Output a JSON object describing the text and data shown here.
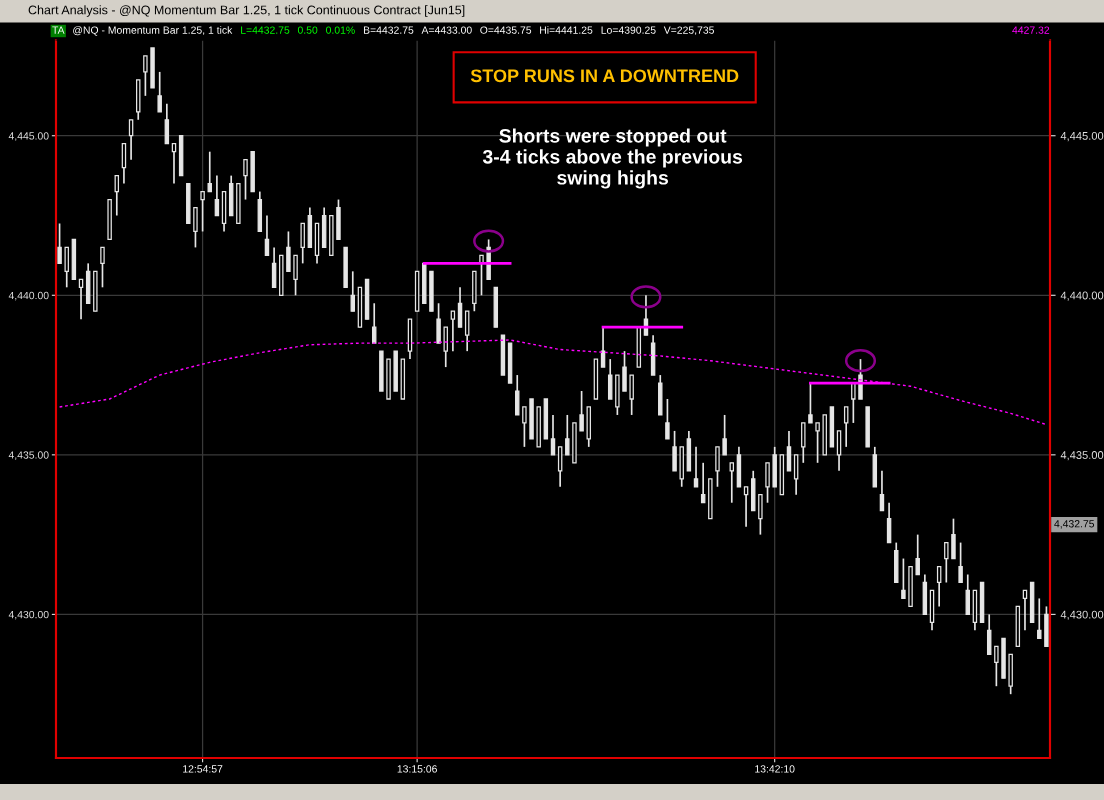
{
  "chart_data": {
    "type": "candlestick",
    "title": "STOP RUNS IN A DOWNTREND",
    "annotations": [
      "Chart Analysis - @NQ Momentum Bar 1.25, 1 tick Continuous Contract [Jun15]",
      "Shorts were stopped out\n3-4 ticks above the previous\nswing highs",
      "TA",
      "@NQ - Momentum Bar 1.25, 1 tick",
      "L=4432.75",
      "0.50",
      "0.01%",
      "B=4432.75",
      "A=4433.00",
      "O=4435.75",
      "Hi=4441.25",
      "Lo=4390.25",
      "V=225,735",
      "4427.32",
      "4,432.75"
    ],
    "categories": [
      null,
      null,
      null,
      null,
      null,
      null,
      null,
      null,
      null,
      null,
      null,
      null,
      null,
      null,
      null,
      null,
      null,
      null,
      null,
      null,
      "12:54:57",
      null,
      null,
      null,
      null,
      null,
      null,
      null,
      null,
      null,
      null,
      null,
      null,
      null,
      null,
      null,
      null,
      null,
      null,
      null,
      null,
      null,
      null,
      null,
      null,
      null,
      null,
      null,
      null,
      null,
      "13:15:06",
      null,
      null,
      null,
      null,
      null,
      null,
      null,
      null,
      null,
      null,
      null,
      null,
      null,
      null,
      null,
      null,
      null,
      null,
      null,
      null,
      null,
      null,
      null,
      null,
      null,
      null,
      null,
      null,
      null,
      null,
      null,
      null,
      null,
      null,
      null,
      null,
      null,
      null,
      null,
      null,
      null,
      null,
      null,
      null,
      null,
      null,
      null,
      null,
      null,
      "13:42:10",
      null,
      null,
      null,
      null,
      null,
      null,
      null,
      null,
      null,
      null,
      null,
      null,
      null,
      null,
      null,
      null,
      null,
      null,
      null,
      null,
      null,
      null,
      null,
      null,
      null,
      null,
      null,
      null,
      null,
      null,
      null,
      null,
      null,
      null,
      null,
      null,
      null,
      null
    ],
    "color": "#e6e6e6",
    "ohlc": [
      [
        4441.5,
        4442.25,
        4441.0,
        4441.0
      ],
      [
        4440.75,
        4441.5,
        4440.25,
        4441.5
      ],
      [
        4441.75,
        4441.75,
        4440.5,
        4440.5
      ],
      [
        4440.25,
        4440.5,
        4439.25,
        4440.5
      ],
      [
        4440.75,
        4441.0,
        4439.75,
        4439.75
      ],
      [
        4439.5,
        4440.75,
        4439.5,
        4440.75
      ],
      [
        4441.0,
        4441.5,
        4440.25,
        4441.5
      ],
      [
        4441.75,
        4443.0,
        4441.75,
        4443.0
      ],
      [
        4443.25,
        4443.75,
        4442.5,
        4443.75
      ],
      [
        4444.0,
        4444.75,
        4443.5,
        4444.75
      ],
      [
        4445.0,
        4445.5,
        4444.25,
        4445.5
      ],
      [
        4445.75,
        4446.75,
        4445.5,
        4446.75
      ],
      [
        4447.0,
        4447.5,
        4446.25,
        4447.5
      ],
      [
        4447.75,
        4447.75,
        4446.5,
        4446.5
      ],
      [
        4446.25,
        4447.0,
        4445.75,
        4445.75
      ],
      [
        4445.5,
        4446.0,
        4444.75,
        4444.75
      ],
      [
        4444.5,
        4444.75,
        4443.5,
        4444.75
      ],
      [
        4445.0,
        4445.0,
        4443.75,
        4443.75
      ],
      [
        4443.5,
        4443.5,
        4442.25,
        4442.25
      ],
      [
        4442.0,
        4442.75,
        4441.5,
        4442.75
      ],
      [
        4443.0,
        4443.25,
        4442.0,
        4443.25
      ],
      [
        4443.5,
        4444.5,
        4443.25,
        4443.25
      ],
      [
        4443.0,
        4443.75,
        4442.5,
        4442.5
      ],
      [
        4442.25,
        4443.25,
        4442.0,
        4443.25
      ],
      [
        4443.5,
        4443.75,
        4442.5,
        4442.5
      ],
      [
        4442.25,
        4443.5,
        4442.25,
        4443.5
      ],
      [
        4443.75,
        4444.25,
        4443.0,
        4444.25
      ],
      [
        4444.5,
        4444.5,
        4443.25,
        4443.25
      ],
      [
        4443.0,
        4443.25,
        4442.0,
        4442.0
      ],
      [
        4441.75,
        4442.5,
        4441.25,
        4441.25
      ],
      [
        4441.0,
        4441.5,
        4440.25,
        4440.25
      ],
      [
        4440.0,
        4441.25,
        4440.0,
        4441.25
      ],
      [
        4441.5,
        4442.0,
        4440.75,
        4440.75
      ],
      [
        4440.5,
        4441.25,
        4440.0,
        4441.25
      ],
      [
        4441.5,
        4442.25,
        4441.0,
        4442.25
      ],
      [
        4442.5,
        4442.75,
        4441.5,
        4441.5
      ],
      [
        4441.25,
        4442.25,
        4441.0,
        4442.25
      ],
      [
        4442.5,
        4442.75,
        4441.5,
        4441.5
      ],
      [
        4441.25,
        4442.5,
        4441.25,
        4442.5
      ],
      [
        4442.75,
        4443.0,
        4441.75,
        4441.75
      ],
      [
        4441.5,
        4441.5,
        4440.25,
        4440.25
      ],
      [
        4440.0,
        4440.75,
        4439.5,
        4439.5
      ],
      [
        4439.0,
        4440.25,
        4439.0,
        4440.25
      ],
      [
        4440.5,
        4440.5,
        4439.25,
        4439.25
      ],
      [
        4439.0,
        4439.75,
        4438.5,
        4438.5
      ],
      [
        4438.25,
        4438.25,
        4437.0,
        4437.0
      ],
      [
        4436.75,
        4438.0,
        4436.75,
        4438.0
      ],
      [
        4438.25,
        4438.25,
        4437.0,
        4437.0
      ],
      [
        4436.75,
        4438.0,
        4436.75,
        4438.0
      ],
      [
        4438.25,
        4439.25,
        4438.0,
        4439.25
      ],
      [
        4439.5,
        4440.75,
        4439.5,
        4440.75
      ],
      [
        4441.0,
        4441.0,
        4439.75,
        4439.75
      ],
      [
        4440.75,
        4440.75,
        4439.5,
        4439.5
      ],
      [
        4439.25,
        4439.75,
        4438.5,
        4438.5
      ],
      [
        4438.25,
        4439.0,
        4437.75,
        4439.0
      ],
      [
        4439.25,
        4439.5,
        4438.25,
        4439.5
      ],
      [
        4439.75,
        4440.25,
        4439.0,
        4439.0
      ],
      [
        4438.75,
        4439.5,
        4438.25,
        4439.5
      ],
      [
        4439.75,
        4440.75,
        4439.5,
        4440.75
      ],
      [
        4441.0,
        4441.25,
        4440.0,
        4441.25
      ],
      [
        4441.5,
        4441.75,
        4440.5,
        4440.5
      ],
      [
        4440.25,
        4440.25,
        4439.0,
        4439.0
      ],
      [
        4438.75,
        4438.75,
        4437.5,
        4437.5
      ],
      [
        4438.5,
        4438.5,
        4437.25,
        4437.25
      ],
      [
        4437.0,
        4437.5,
        4436.25,
        4436.25
      ],
      [
        4436.0,
        4436.5,
        4435.25,
        4436.5
      ],
      [
        4436.75,
        4436.75,
        4435.5,
        4435.5
      ],
      [
        4435.25,
        4436.5,
        4435.25,
        4436.5
      ],
      [
        4436.75,
        4436.75,
        4435.5,
        4435.5
      ],
      [
        4435.5,
        4436.25,
        4435.0,
        4435.0
      ],
      [
        4434.5,
        4435.25,
        4434.0,
        4435.25
      ],
      [
        4435.5,
        4436.25,
        4435.0,
        4435.0
      ],
      [
        4434.75,
        4436.0,
        4434.75,
        4436.0
      ],
      [
        4436.25,
        4437.0,
        4435.75,
        4435.75
      ],
      [
        4435.5,
        4436.5,
        4435.25,
        4436.5
      ],
      [
        4436.75,
        4438.0,
        4436.75,
        4438.0
      ],
      [
        4438.25,
        4439.0,
        4437.75,
        4437.75
      ],
      [
        4437.5,
        4438.0,
        4436.75,
        4436.75
      ],
      [
        4436.5,
        4437.5,
        4436.25,
        4437.5
      ],
      [
        4437.75,
        4438.25,
        4437.0,
        4437.0
      ],
      [
        4436.75,
        4437.5,
        4436.25,
        4437.5
      ],
      [
        4437.75,
        4439.0,
        4437.75,
        4439.0
      ],
      [
        4439.25,
        4440.0,
        4438.75,
        4438.75
      ],
      [
        4438.5,
        4438.75,
        4437.5,
        4437.5
      ],
      [
        4437.25,
        4437.5,
        4436.25,
        4436.25
      ],
      [
        4436.0,
        4436.75,
        4435.5,
        4435.5
      ],
      [
        4435.25,
        4435.75,
        4434.5,
        4434.5
      ],
      [
        4434.25,
        4435.25,
        4434.0,
        4435.25
      ],
      [
        4435.5,
        4435.75,
        4434.5,
        4434.5
      ],
      [
        4434.25,
        4435.25,
        4434.0,
        4434.0
      ],
      [
        4433.75,
        4434.75,
        4433.5,
        4433.5
      ],
      [
        4433.0,
        4434.25,
        4433.0,
        4434.25
      ],
      [
        4434.5,
        4435.25,
        4434.0,
        4435.25
      ],
      [
        4435.5,
        4436.25,
        4435.0,
        4435.0
      ],
      [
        4434.5,
        4434.75,
        4433.5,
        4434.75
      ],
      [
        4435.0,
        4435.25,
        4434.0,
        4434.0
      ],
      [
        4433.75,
        4434.0,
        4432.75,
        4434.0
      ],
      [
        4434.25,
        4434.5,
        4433.25,
        4433.25
      ],
      [
        4433.0,
        4433.75,
        4432.5,
        4433.75
      ],
      [
        4434.0,
        4434.75,
        4433.5,
        4434.75
      ],
      [
        4435.0,
        4435.25,
        4434.0,
        4434.0
      ],
      [
        4433.75,
        4435.0,
        4433.75,
        4435.0
      ],
      [
        4435.25,
        4435.75,
        4434.5,
        4434.5
      ],
      [
        4434.25,
        4435.0,
        4433.75,
        4435.0
      ],
      [
        4435.25,
        4436.0,
        4434.75,
        4436.0
      ],
      [
        4436.25,
        4437.25,
        4436.0,
        4436.0
      ],
      [
        4435.75,
        4436.0,
        4434.75,
        4436.0
      ],
      [
        4435.0,
        4436.25,
        4435.0,
        4436.25
      ],
      [
        4436.5,
        4436.5,
        4435.25,
        4435.25
      ],
      [
        4435.0,
        4435.75,
        4434.5,
        4435.75
      ],
      [
        4436.0,
        4436.5,
        4435.25,
        4436.5
      ],
      [
        4436.75,
        4437.25,
        4436.0,
        4437.25
      ],
      [
        4437.5,
        4438.0,
        4436.75,
        4436.75
      ],
      [
        4436.5,
        4436.5,
        4435.25,
        4435.25
      ],
      [
        4435.0,
        4435.25,
        4434.0,
        4434.0
      ],
      [
        4433.75,
        4434.5,
        4433.25,
        4433.25
      ],
      [
        4433.0,
        4433.5,
        4432.25,
        4432.25
      ],
      [
        4432.0,
        4432.25,
        4431.0,
        4431.0
      ],
      [
        4430.75,
        4431.75,
        4430.5,
        4430.5
      ],
      [
        4430.25,
        4431.5,
        4430.25,
        4431.5
      ],
      [
        4431.75,
        4432.5,
        4431.25,
        4431.25
      ],
      [
        4431.0,
        4431.25,
        4430.0,
        4430.0
      ],
      [
        4429.75,
        4430.75,
        4429.5,
        4430.75
      ],
      [
        4431.0,
        4431.5,
        4430.25,
        4431.5
      ],
      [
        4431.75,
        4432.25,
        4431.0,
        4432.25
      ],
      [
        4432.5,
        4433.0,
        4431.75,
        4431.75
      ],
      [
        4431.5,
        4432.25,
        4431.0,
        4431.0
      ],
      [
        4430.75,
        4431.25,
        4430.0,
        4430.0
      ],
      [
        4429.75,
        4430.75,
        4429.5,
        4430.75
      ],
      [
        4431.0,
        4431.0,
        4429.75,
        4429.75
      ],
      [
        4429.5,
        4430.0,
        4428.75,
        4428.75
      ],
      [
        4428.5,
        4429.0,
        4427.75,
        4429.0
      ],
      [
        4429.25,
        4429.25,
        4428.0,
        4428.0
      ],
      [
        4427.75,
        4428.75,
        4427.5,
        4428.75
      ],
      [
        4429.0,
        4430.25,
        4429.0,
        4430.25
      ],
      [
        4430.5,
        4430.75,
        4429.5,
        4430.75
      ],
      [
        4431.0,
        4431.0,
        4429.75,
        4429.75
      ],
      [
        4429.5,
        4430.5,
        4429.25,
        4429.25
      ],
      [
        4430.0,
        4430.25,
        4429.0,
        4429.0
      ]
    ],
    "series": [
      {
        "type": "line",
        "color": "#ff00ff",
        "line_style": "dotted",
        "values": [
          4436.5,
          null,
          null,
          null,
          null,
          null,
          null,
          4436.75,
          null,
          null,
          null,
          null,
          null,
          null,
          4437.5,
          null,
          null,
          null,
          null,
          null,
          null,
          4437.9,
          null,
          null,
          null,
          null,
          null,
          null,
          4438.2,
          null,
          null,
          null,
          null,
          null,
          null,
          4438.45,
          null,
          null,
          null,
          null,
          null,
          null,
          4438.5,
          null,
          null,
          null,
          null,
          null,
          null,
          4438.5,
          null,
          null,
          null,
          null,
          null,
          null,
          4438.55,
          null,
          null,
          null,
          null,
          null,
          null,
          4438.6,
          null,
          null,
          null,
          null,
          null,
          null,
          4438.3,
          null,
          null,
          null,
          null,
          null,
          null,
          4438.2,
          null,
          null,
          null,
          null,
          null,
          null,
          4438.1,
          null,
          null,
          null,
          null,
          null,
          null,
          4437.95,
          null,
          null,
          null,
          null,
          null,
          null,
          4437.75,
          null,
          null,
          null,
          null,
          null,
          null,
          4437.55,
          null,
          null,
          null,
          null,
          null,
          null,
          4437.35,
          null,
          null,
          null,
          null,
          null,
          null,
          4437.15,
          null,
          null,
          null,
          null,
          null,
          null,
          4436.7,
          null,
          null,
          null,
          null,
          null,
          null,
          4436.3,
          null,
          null,
          null,
          null,
          4435.95
        ]
      },
      {
        "type": "line",
        "color": "#ff00ff",
        "line_style": "solid",
        "values": [
          null,
          null,
          null,
          null,
          null,
          null,
          null,
          null,
          null,
          null,
          null,
          null,
          null,
          null,
          null,
          null,
          null,
          null,
          null,
          null,
          null,
          null,
          null,
          null,
          null,
          null,
          null,
          null,
          null,
          null,
          null,
          null,
          null,
          null,
          null,
          null,
          null,
          null,
          null,
          null,
          null,
          null,
          null,
          null,
          null,
          null,
          null,
          null,
          null,
          null,
          null,
          4441.0,
          null,
          null,
          null,
          null,
          null,
          null,
          null,
          null,
          null,
          null,
          null,
          4441.0,
          null,
          null,
          null,
          null,
          null,
          null,
          null,
          null,
          null,
          null,
          null,
          null,
          null,
          null,
          null,
          null,
          null,
          null,
          null,
          null,
          null,
          null,
          null,
          null,
          null,
          null,
          null,
          null,
          null,
          null,
          null,
          null,
          null,
          null,
          null,
          null,
          null,
          null,
          null,
          null,
          null,
          null,
          null,
          null,
          null,
          null,
          null,
          null,
          null,
          null,
          null,
          null,
          null,
          null,
          null,
          null,
          null,
          null,
          null,
          null,
          null,
          null,
          null,
          null,
          null,
          null,
          null,
          null,
          null,
          null,
          null,
          null,
          null,
          null,
          null
        ]
      },
      {
        "type": "line",
        "color": "#ff00ff",
        "line_style": "solid",
        "values": [
          null,
          null,
          null,
          null,
          null,
          null,
          null,
          null,
          null,
          null,
          null,
          null,
          null,
          null,
          null,
          null,
          null,
          null,
          null,
          null,
          null,
          null,
          null,
          null,
          null,
          null,
          null,
          null,
          null,
          null,
          null,
          null,
          null,
          null,
          null,
          null,
          null,
          null,
          null,
          null,
          null,
          null,
          null,
          null,
          null,
          null,
          null,
          null,
          null,
          null,
          null,
          null,
          null,
          null,
          null,
          null,
          null,
          null,
          null,
          null,
          null,
          null,
          null,
          null,
          null,
          null,
          null,
          null,
          null,
          null,
          null,
          null,
          null,
          null,
          null,
          null,
          4439.0,
          null,
          null,
          null,
          null,
          null,
          null,
          null,
          null,
          null,
          null,
          4439.0,
          null,
          null,
          null,
          null,
          null,
          null,
          null,
          null,
          null,
          null,
          null,
          null,
          null,
          null,
          null,
          null,
          null,
          null,
          null,
          null,
          null,
          null,
          null,
          null,
          null,
          null,
          null,
          null,
          null,
          null,
          null,
          null,
          null,
          null,
          null,
          null,
          null,
          null,
          null,
          null,
          null,
          null,
          null,
          null,
          null,
          null,
          null,
          null,
          null,
          null,
          null
        ]
      },
      {
        "type": "line",
        "color": "#ff00ff",
        "line_style": "solid",
        "values": [
          null,
          null,
          null,
          null,
          null,
          null,
          null,
          null,
          null,
          null,
          null,
          null,
          null,
          null,
          null,
          null,
          null,
          null,
          null,
          null,
          null,
          null,
          null,
          null,
          null,
          null,
          null,
          null,
          null,
          null,
          null,
          null,
          null,
          null,
          null,
          null,
          null,
          null,
          null,
          null,
          null,
          null,
          null,
          null,
          null,
          null,
          null,
          null,
          null,
          null,
          null,
          null,
          null,
          null,
          null,
          null,
          null,
          null,
          null,
          null,
          null,
          null,
          null,
          null,
          null,
          null,
          null,
          null,
          null,
          null,
          null,
          null,
          null,
          null,
          null,
          null,
          null,
          null,
          null,
          null,
          null,
          null,
          null,
          null,
          null,
          null,
          null,
          null,
          null,
          null,
          null,
          null,
          null,
          null,
          null,
          null,
          null,
          null,
          null,
          null,
          null,
          null,
          null,
          null,
          null,
          4437.25,
          null,
          null,
          null,
          null,
          null,
          null,
          null,
          null,
          null,
          null,
          4437.25,
          null,
          null,
          null,
          null,
          null,
          null,
          null,
          null,
          null,
          null,
          null,
          null,
          null,
          null,
          null,
          null,
          null,
          null,
          null,
          null,
          null,
          null
        ]
      }
    ],
    "ylim": [
      4425.5,
      4448.0
    ],
    "yticks": [
      {
        "value": 4430,
        "label": "4,430.00"
      },
      {
        "value": 4435,
        "label": "4,435.00"
      },
      {
        "value": 4440,
        "label": "4,440.00"
      },
      {
        "value": 4445,
        "label": "4,445.00"
      }
    ],
    "y2lim": [
      4425.5,
      4448.0
    ],
    "y2ticks": [
      {
        "value": 4430,
        "label": "4,430.00"
      },
      {
        "value": 4435,
        "label": "4,435.00"
      },
      {
        "value": 4440,
        "label": "4,440.00"
      },
      {
        "value": 4445,
        "label": "4,445.00"
      }
    ],
    "grid": true
  }
}
